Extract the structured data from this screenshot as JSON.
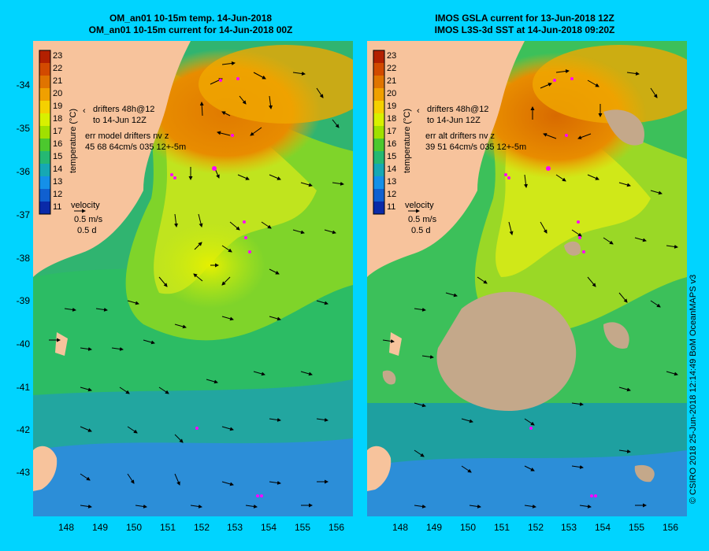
{
  "left_panel": {
    "title_line1": "OM_an01 10-15m temp. 14-Jun-2018",
    "title_line2": "OM_an01 10-15m current for 14-Jun-2018 00Z",
    "drifters_label_1": "drifters 48h@12",
    "drifters_label_2": "to 14-Jun 12Z",
    "err_label_1": "err model drifters nv z",
    "err_label_2": "45 68 64cm/s 035 12+-5m"
  },
  "right_panel": {
    "title_line1": "IMOS GSLA current for 13-Jun-2018 12Z",
    "title_line2": "IMOS L3S-3d SST at 14-Jun-2018 09:20Z",
    "drifters_label_1": "drifters 48h@12",
    "drifters_label_2": "to 14-Jun 12Z",
    "err_label_1": "err alt drifters nv z",
    "err_label_2": "39 51 64cm/s 035 12+-5m"
  },
  "colorbar": {
    "label": "temperature (°C)",
    "ticks": [
      "23",
      "22",
      "21",
      "20",
      "19",
      "18",
      "17",
      "16",
      "15",
      "14",
      "13",
      "12",
      "11"
    ],
    "colors": [
      "#b32000",
      "#d24a00",
      "#e07400",
      "#f0a000",
      "#f5d000",
      "#d8f000",
      "#a0e000",
      "#4cc82e",
      "#25b872",
      "#16a8b4",
      "#1590e8",
      "#1060d0",
      "#0a2aa8"
    ]
  },
  "velocity_legend": {
    "title": "velocity",
    "speed": "0.5 m/s",
    "duration": "0.5 d"
  },
  "y_axis_labels": [
    "-34",
    "-35",
    "-36",
    "-37",
    "-38",
    "-39",
    "-40",
    "-41",
    "-42",
    "-43"
  ],
  "x_axis_labels": [
    "148",
    "149",
    "150",
    "151",
    "152",
    "153",
    "154",
    "155",
    "156"
  ],
  "copyright": "© CSIRO 2018   25-Jun-2018 12:14:49 BoM OceanMAPS v3",
  "colors": {
    "background": "#00d4ff",
    "land": "#f7c39c",
    "no_data": "#c4a88a",
    "drifter": "#ff00ff"
  }
}
